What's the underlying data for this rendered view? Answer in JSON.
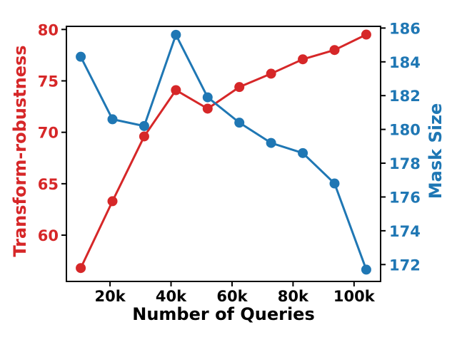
{
  "chart_data": {
    "type": "line",
    "title": "",
    "xlabel": "Number of Queries",
    "grid": false,
    "legend": null,
    "background": "#ffffff",
    "spine_color": "#000000",
    "x": [
      10400,
      20800,
      31200,
      41600,
      52000,
      62400,
      72800,
      83200,
      93600,
      104000
    ],
    "series": [
      {
        "name": "Transform-robustness",
        "axis": "left",
        "color": "#d62728",
        "marker": "circle",
        "values": [
          56.8,
          63.3,
          69.6,
          74.1,
          72.3,
          74.4,
          75.7,
          77.1,
          78.0,
          79.5
        ]
      },
      {
        "name": "Mask Size",
        "axis": "right",
        "color": "#1f77b4",
        "marker": "circle",
        "values": [
          184.3,
          180.6,
          180.2,
          185.6,
          181.9,
          180.4,
          179.2,
          178.6,
          176.8,
          171.7
        ]
      }
    ],
    "x_axis": {
      "label": "Number of Queries",
      "color": "#000000",
      "range": [
        5700,
        108700
      ],
      "ticks": [
        20000,
        40000,
        60000,
        80000,
        100000
      ],
      "tick_labels": [
        "20k",
        "40k",
        "60k",
        "80k",
        "100k"
      ]
    },
    "left_axis": {
      "label": "Transform-robustness",
      "color": "#d62728",
      "range": [
        55.5,
        80.3
      ],
      "ticks": [
        60,
        65,
        70,
        75,
        80
      ],
      "tick_labels": [
        "60",
        "65",
        "70",
        "75",
        "80"
      ]
    },
    "right_axis": {
      "label": "Mask Size",
      "color": "#1f77b4",
      "range": [
        171.0,
        186.1
      ],
      "ticks": [
        172,
        174,
        176,
        178,
        180,
        182,
        184,
        186
      ],
      "tick_labels": [
        "172",
        "174",
        "176",
        "178",
        "180",
        "182",
        "184",
        "186"
      ]
    }
  }
}
